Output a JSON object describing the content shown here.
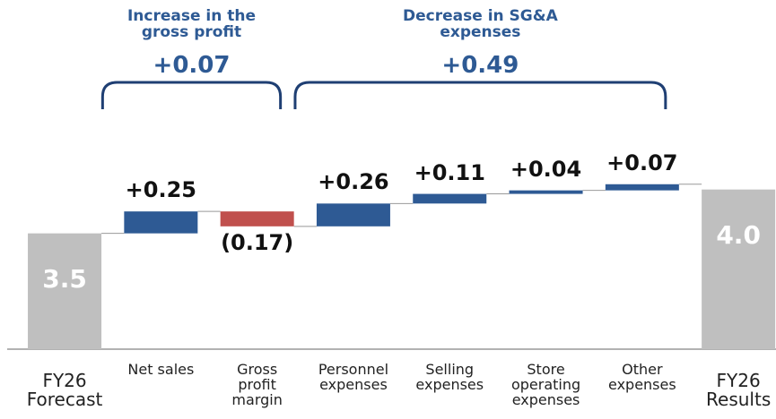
{
  "chart_data": {
    "type": "waterfall",
    "categories": [
      "FY26 Forecast",
      "Net sales",
      "Gross profit margin",
      "Personnel expenses",
      "Selling expenses",
      "Store operating expenses",
      "Other expenses",
      "FY26 Results"
    ],
    "values": [
      3.5,
      0.25,
      -0.17,
      0.26,
      0.11,
      0.04,
      0.07,
      4.0
    ],
    "value_labels": [
      "3.5",
      "+0.25",
      "(0.17)",
      "+0.26",
      "+0.11",
      "+0.04",
      "+0.07",
      "4.0"
    ],
    "measure": [
      "absolute",
      "relative",
      "relative",
      "relative",
      "relative",
      "relative",
      "relative",
      "absolute"
    ],
    "colors": {
      "increase": "#2e5a94",
      "decrease": "#c0504d",
      "total": "#bfbfbf"
    },
    "ylim": [
      2.18,
      6.16
    ],
    "annotations": [
      {
        "text": "Increase in the gross profit",
        "value": 0.07,
        "value_label": "+0.07",
        "from": 1,
        "to": 2
      },
      {
        "text": "Decrease in SG&A expenses",
        "value": 0.49,
        "value_label": "+0.49",
        "from": 3,
        "to": 6
      }
    ]
  }
}
